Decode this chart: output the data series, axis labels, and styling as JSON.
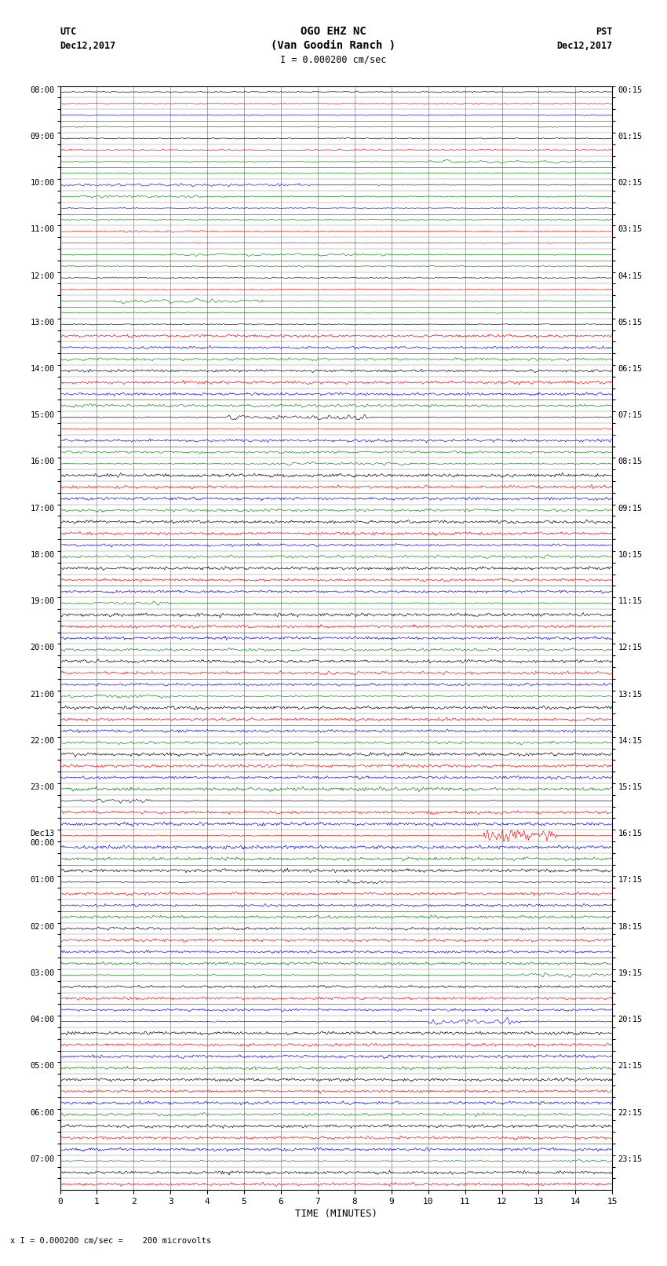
{
  "title_line1": "OGO EHZ NC",
  "title_line2": "(Van Goodin Ranch )",
  "title_line3": "I = 0.000200 cm/sec",
  "left_header_line1": "UTC",
  "left_header_line2": "Dec12,2017",
  "right_header_line1": "PST",
  "right_header_line2": "Dec12,2017",
  "xlabel": "TIME (MINUTES)",
  "footer": "x I = 0.000200 cm/sec =    200 microvolts",
  "utc_labels": [
    "08:00",
    "",
    "",
    "",
    "09:00",
    "",
    "",
    "",
    "10:00",
    "",
    "",
    "",
    "11:00",
    "",
    "",
    "",
    "12:00",
    "",
    "",
    "",
    "13:00",
    "",
    "",
    "",
    "14:00",
    "",
    "",
    "",
    "15:00",
    "",
    "",
    "",
    "16:00",
    "",
    "",
    "",
    "17:00",
    "",
    "",
    "",
    "18:00",
    "",
    "",
    "",
    "19:00",
    "",
    "",
    "",
    "20:00",
    "",
    "",
    "",
    "21:00",
    "",
    "",
    "",
    "22:00",
    "",
    "",
    "",
    "23:00",
    "",
    "",
    "",
    "Dec13\n00:00",
    "",
    "",
    "",
    "01:00",
    "",
    "",
    "",
    "02:00",
    "",
    "",
    "",
    "03:00",
    "",
    "",
    "",
    "04:00",
    "",
    "",
    "",
    "05:00",
    "",
    "",
    "",
    "06:00",
    "",
    "",
    "",
    "07:00",
    "",
    ""
  ],
  "pst_labels": [
    "00:15",
    "",
    "",
    "",
    "01:15",
    "",
    "",
    "",
    "02:15",
    "",
    "",
    "",
    "03:15",
    "",
    "",
    "",
    "04:15",
    "",
    "",
    "",
    "05:15",
    "",
    "",
    "",
    "06:15",
    "",
    "",
    "",
    "07:15",
    "",
    "",
    "",
    "08:15",
    "",
    "",
    "",
    "09:15",
    "",
    "",
    "",
    "10:15",
    "",
    "",
    "",
    "11:15",
    "",
    "",
    "",
    "12:15",
    "",
    "",
    "",
    "13:15",
    "",
    "",
    "",
    "14:15",
    "",
    "",
    "",
    "15:15",
    "",
    "",
    "",
    "16:15",
    "",
    "",
    "",
    "17:15",
    "",
    "",
    "",
    "18:15",
    "",
    "",
    "",
    "19:15",
    "",
    "",
    "",
    "20:15",
    "",
    "",
    "",
    "21:15",
    "",
    "",
    "",
    "22:15",
    "",
    "",
    "",
    "23:15",
    "",
    ""
  ],
  "n_rows": 95,
  "row_colors_cycle": [
    "black",
    "red",
    "blue",
    "green"
  ],
  "bg_color": "white",
  "grid_color": "#666666",
  "x_min": 0,
  "x_max": 15,
  "x_ticks": [
    0,
    1,
    2,
    3,
    4,
    5,
    6,
    7,
    8,
    9,
    10,
    11,
    12,
    13,
    14,
    15
  ],
  "noise_base": 0.06,
  "random_seed": 42,
  "special_events": {
    "6": {
      "x_range": [
        10.0,
        14.5
      ],
      "amp": 4.0,
      "sigma": 8,
      "color": "green"
    },
    "8": {
      "x_range": [
        0.0,
        6.5
      ],
      "amp": 2.5,
      "sigma": 3,
      "color": "blue"
    },
    "9": {
      "x_range": [
        0.5,
        4.5
      ],
      "amp": 3.5,
      "sigma": 5,
      "color": "green"
    },
    "12": {
      "x_range": [
        1.0,
        4.0
      ],
      "amp": 2.0,
      "sigma": 4,
      "color": "red"
    },
    "14": {
      "x_range": [
        3.0,
        9.0
      ],
      "amp": 3.0,
      "sigma": 6,
      "color": "green"
    },
    "18": {
      "x_range": [
        1.5,
        5.5
      ],
      "amp": 5.0,
      "sigma": 5,
      "color": "green"
    },
    "21": {
      "x_range": [
        0.0,
        15.0
      ],
      "amp": 2.0,
      "sigma": 2,
      "color": "red"
    },
    "22": {
      "x_range": [
        0.0,
        15.0
      ],
      "amp": 1.8,
      "sigma": 2,
      "color": "blue"
    },
    "23": {
      "x_range": [
        0.0,
        15.0
      ],
      "amp": 2.5,
      "sigma": 3,
      "color": "green"
    },
    "24": {
      "x_range": [
        0.0,
        15.0
      ],
      "amp": 1.8,
      "sigma": 2,
      "color": "black"
    },
    "25": {
      "x_range": [
        0.0,
        15.0
      ],
      "amp": 2.2,
      "sigma": 2,
      "color": "red"
    },
    "26": {
      "x_range": [
        0.0,
        15.0
      ],
      "amp": 2.0,
      "sigma": 2,
      "color": "blue"
    },
    "27": {
      "x_range": [
        0.0,
        15.0
      ],
      "amp": 2.5,
      "sigma": 3,
      "color": "green"
    },
    "28": {
      "x_range": [
        4.5,
        8.5
      ],
      "amp": 5.0,
      "sigma": 4,
      "color": "black"
    },
    "30": {
      "x_range": [
        0.0,
        15.0
      ],
      "amp": 1.8,
      "sigma": 2,
      "color": "blue"
    },
    "31": {
      "x_range": [
        0.0,
        15.0
      ],
      "amp": 2.0,
      "sigma": 3,
      "color": "green"
    },
    "32": {
      "x_range": [
        5.5,
        9.5
      ],
      "amp": 3.5,
      "sigma": 5,
      "color": "green"
    },
    "33": {
      "x_range": [
        0.0,
        15.0
      ],
      "amp": 2.5,
      "sigma": 2,
      "color": "black"
    },
    "34": {
      "x_range": [
        0.0,
        15.0
      ],
      "amp": 2.2,
      "sigma": 2,
      "color": "red"
    },
    "35": {
      "x_range": [
        0.0,
        15.0
      ],
      "amp": 2.0,
      "sigma": 2,
      "color": "blue"
    },
    "36": {
      "x_range": [
        0.0,
        15.0
      ],
      "amp": 2.5,
      "sigma": 3,
      "color": "green"
    },
    "37": {
      "x_range": [
        0.0,
        15.0
      ],
      "amp": 2.2,
      "sigma": 2,
      "color": "black"
    },
    "38": {
      "x_range": [
        0.0,
        15.0
      ],
      "amp": 2.0,
      "sigma": 2,
      "color": "red"
    },
    "39": {
      "x_range": [
        0.0,
        15.0
      ],
      "amp": 1.8,
      "sigma": 2,
      "color": "blue"
    },
    "40": {
      "x_range": [
        0.0,
        15.0
      ],
      "amp": 2.5,
      "sigma": 3,
      "color": "green"
    },
    "41": {
      "x_range": [
        0.0,
        15.0
      ],
      "amp": 2.2,
      "sigma": 2,
      "color": "black"
    },
    "42": {
      "x_range": [
        0.0,
        15.0
      ],
      "amp": 2.0,
      "sigma": 2,
      "color": "red"
    },
    "43": {
      "x_range": [
        0.0,
        15.0
      ],
      "amp": 1.8,
      "sigma": 2,
      "color": "blue"
    },
    "44": {
      "x_range": [
        0.0,
        3.0
      ],
      "amp": 3.0,
      "sigma": 4,
      "color": "green"
    },
    "45": {
      "x_range": [
        0.0,
        15.0
      ],
      "amp": 2.5,
      "sigma": 2,
      "color": "black"
    },
    "46": {
      "x_range": [
        0.0,
        15.0
      ],
      "amp": 2.2,
      "sigma": 2,
      "color": "red"
    },
    "47": {
      "x_range": [
        0.0,
        15.0
      ],
      "amp": 2.0,
      "sigma": 2,
      "color": "blue"
    },
    "48": {
      "x_range": [
        0.0,
        15.0
      ],
      "amp": 2.5,
      "sigma": 3,
      "color": "green"
    },
    "49": {
      "x_range": [
        0.0,
        15.0
      ],
      "amp": 2.2,
      "sigma": 2,
      "color": "black"
    },
    "50": {
      "x_range": [
        0.0,
        15.0
      ],
      "amp": 2.0,
      "sigma": 2,
      "color": "red"
    },
    "51": {
      "x_range": [
        0.0,
        15.0
      ],
      "amp": 1.8,
      "sigma": 2,
      "color": "blue"
    },
    "52": {
      "x_range": [
        0.0,
        3.0
      ],
      "amp": 4.0,
      "sigma": 4,
      "color": "green"
    },
    "53": {
      "x_range": [
        0.0,
        15.0
      ],
      "amp": 2.5,
      "sigma": 2,
      "color": "black"
    },
    "54": {
      "x_range": [
        0.0,
        15.0
      ],
      "amp": 2.2,
      "sigma": 2,
      "color": "red"
    },
    "55": {
      "x_range": [
        0.0,
        15.0
      ],
      "amp": 2.0,
      "sigma": 2,
      "color": "blue"
    },
    "56": {
      "x_range": [
        0.0,
        15.0
      ],
      "amp": 2.5,
      "sigma": 3,
      "color": "green"
    },
    "57": {
      "x_range": [
        0.0,
        15.0
      ],
      "amp": 2.5,
      "sigma": 2,
      "color": "black"
    },
    "58": {
      "x_range": [
        0.0,
        15.0
      ],
      "amp": 2.2,
      "sigma": 2,
      "color": "red"
    },
    "59": {
      "x_range": [
        0.0,
        15.0
      ],
      "amp": 2.0,
      "sigma": 2,
      "color": "blue"
    },
    "60": {
      "x_range": [
        0.0,
        15.0
      ],
      "amp": 2.5,
      "sigma": 2,
      "color": "green"
    },
    "61": {
      "x_range": [
        0.5,
        2.5
      ],
      "amp": 4.0,
      "sigma": 4,
      "color": "black"
    },
    "62": {
      "x_range": [
        0.0,
        15.0
      ],
      "amp": 2.2,
      "sigma": 2,
      "color": "red"
    },
    "63": {
      "x_range": [
        0.0,
        15.0
      ],
      "amp": 2.5,
      "sigma": 2,
      "color": "blue"
    },
    "64": {
      "x_range": [
        11.5,
        13.5
      ],
      "amp": 12.0,
      "sigma": 3,
      "color": "red"
    },
    "65": {
      "x_range": [
        0.0,
        15.0
      ],
      "amp": 2.5,
      "sigma": 2,
      "color": "blue"
    },
    "66": {
      "x_range": [
        0.0,
        15.0
      ],
      "amp": 2.2,
      "sigma": 2,
      "color": "green"
    },
    "67": {
      "x_range": [
        0.0,
        15.0
      ],
      "amp": 2.5,
      "sigma": 2,
      "color": "black"
    },
    "68": {
      "x_range": [
        7.5,
        9.0
      ],
      "amp": 3.5,
      "sigma": 3,
      "color": "black"
    },
    "69": {
      "x_range": [
        0.0,
        15.0
      ],
      "amp": 2.0,
      "sigma": 2,
      "color": "red"
    },
    "70": {
      "x_range": [
        0.0,
        15.0
      ],
      "amp": 1.8,
      "sigma": 2,
      "color": "blue"
    },
    "71": {
      "x_range": [
        0.0,
        15.0
      ],
      "amp": 2.0,
      "sigma": 2,
      "color": "green"
    },
    "72": {
      "x_range": [
        0.0,
        15.0
      ],
      "amp": 1.8,
      "sigma": 2,
      "color": "black"
    },
    "73": {
      "x_range": [
        0.0,
        15.0
      ],
      "amp": 2.0,
      "sigma": 2,
      "color": "red"
    },
    "74": {
      "x_range": [
        0.0,
        15.0
      ],
      "amp": 1.8,
      "sigma": 2,
      "color": "blue"
    },
    "75": {
      "x_range": [
        0.0,
        15.0
      ],
      "amp": 2.0,
      "sigma": 2,
      "color": "green"
    },
    "76": {
      "x_range": [
        12.5,
        15.0
      ],
      "amp": 5.0,
      "sigma": 5,
      "color": "green"
    },
    "77": {
      "x_range": [
        0.0,
        15.0
      ],
      "amp": 1.8,
      "sigma": 2,
      "color": "black"
    },
    "78": {
      "x_range": [
        0.0,
        15.0
      ],
      "amp": 2.0,
      "sigma": 2,
      "color": "red"
    },
    "79": {
      "x_range": [
        0.0,
        15.0
      ],
      "amp": 1.8,
      "sigma": 2,
      "color": "blue"
    },
    "80": {
      "x_range": [
        10.0,
        12.5
      ],
      "amp": 6.0,
      "sigma": 4,
      "color": "blue"
    },
    "81": {
      "x_range": [
        0.0,
        15.0
      ],
      "amp": 2.2,
      "sigma": 2,
      "color": "black"
    },
    "82": {
      "x_range": [
        0.0,
        15.0
      ],
      "amp": 2.0,
      "sigma": 2,
      "color": "red"
    },
    "83": {
      "x_range": [
        0.0,
        15.0
      ],
      "amp": 2.2,
      "sigma": 2,
      "color": "blue"
    },
    "84": {
      "x_range": [
        0.0,
        15.0
      ],
      "amp": 2.0,
      "sigma": 2,
      "color": "green"
    },
    "85": {
      "x_range": [
        0.0,
        15.0
      ],
      "amp": 2.2,
      "sigma": 2,
      "color": "black"
    },
    "86": {
      "x_range": [
        0.0,
        15.0
      ],
      "amp": 2.0,
      "sigma": 2,
      "color": "red"
    },
    "87": {
      "x_range": [
        0.0,
        15.0
      ],
      "amp": 2.2,
      "sigma": 2,
      "color": "blue"
    },
    "88": {
      "x_range": [
        0.0,
        15.0
      ],
      "amp": 2.5,
      "sigma": 3,
      "color": "green"
    },
    "89": {
      "x_range": [
        0.0,
        15.0
      ],
      "amp": 2.2,
      "sigma": 2,
      "color": "black"
    },
    "90": {
      "x_range": [
        0.0,
        15.0
      ],
      "amp": 2.0,
      "sigma": 2,
      "color": "red"
    },
    "91": {
      "x_range": [
        0.0,
        15.0
      ],
      "amp": 2.2,
      "sigma": 2,
      "color": "blue"
    },
    "92": {
      "x_range": [
        13.5,
        15.0
      ],
      "amp": 4.0,
      "sigma": 5,
      "color": "green"
    },
    "93": {
      "x_range": [
        0.0,
        15.0
      ],
      "amp": 2.2,
      "sigma": 2,
      "color": "black"
    },
    "94": {
      "x_range": [
        0.0,
        15.0
      ],
      "amp": 2.0,
      "sigma": 2,
      "color": "red"
    }
  }
}
